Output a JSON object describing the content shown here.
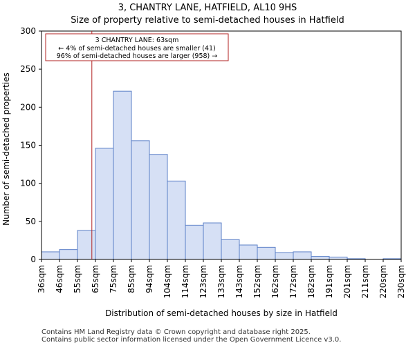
{
  "chart_data": {
    "type": "histogram",
    "title": "3, CHANTRY LANE, HATFIELD, AL10 9HS",
    "subtitle": "Size of property relative to semi-detached houses in Hatfield",
    "xlabel": "Distribution of semi-detached houses by size in Hatfield",
    "ylabel": "Number of semi-detached properties",
    "categories": [
      "36sqm",
      "46sqm",
      "55sqm",
      "65sqm",
      "75sqm",
      "85sqm",
      "94sqm",
      "104sqm",
      "114sqm",
      "123sqm",
      "133sqm",
      "143sqm",
      "152sqm",
      "162sqm",
      "172sqm",
      "182sqm",
      "191sqm",
      "201sqm",
      "211sqm",
      "220sqm",
      "230sqm"
    ],
    "values": [
      10,
      13,
      38,
      146,
      221,
      156,
      138,
      103,
      45,
      48,
      26,
      19,
      16,
      9,
      10,
      4,
      3,
      1,
      0,
      1
    ],
    "ylim": [
      0,
      300
    ],
    "yticks": [
      0,
      50,
      100,
      150,
      200,
      250,
      300
    ],
    "bar_color": "#d6e0f5",
    "bar_edge_color": "#5b7fc7",
    "marker": {
      "value_bin_position": 2.8,
      "color": "#b22222",
      "lines": [
        "3 CHANTRY LANE: 63sqm",
        "← 4% of semi-detached houses are smaller (41)",
        "96% of semi-detached houses are larger (958) →"
      ]
    },
    "grid": false
  },
  "footer": {
    "line1": "Contains HM Land Registry data © Crown copyright and database right 2025.",
    "line2": "Contains public sector information licensed under the Open Government Licence v3.0."
  }
}
